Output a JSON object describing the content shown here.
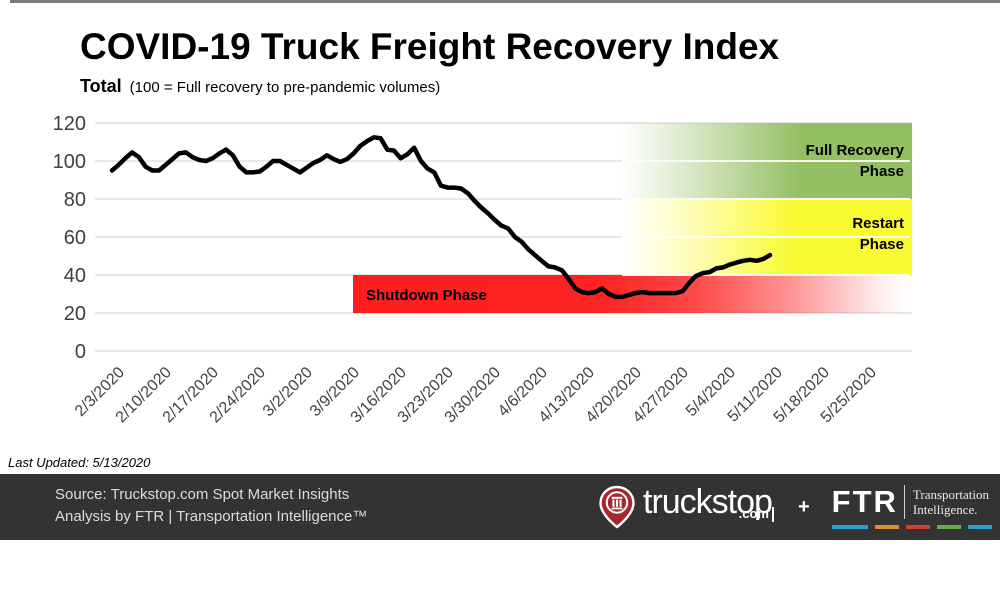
{
  "page": {
    "title": "COVID-19 Truck Freight Recovery Index",
    "subtitle_bold": "Total",
    "subtitle_note": "(100 = Full recovery to pre-pandemic volumes)",
    "last_updated": "Last Updated: 5/13/2020"
  },
  "chart_data": {
    "type": "line",
    "title": "COVID-19 Truck Freight Recovery Index",
    "series_name": "Total",
    "unit_note": "100 = Full recovery to pre-pandemic volumes",
    "frequency": "daily",
    "start_date": "2/3/2020",
    "end_date": "5/11/2020",
    "ylim": [
      0,
      120
    ],
    "y_ticks": [
      0,
      20,
      40,
      60,
      80,
      100,
      120
    ],
    "x_tick_labels": [
      "2/3/2020",
      "2/10/2020",
      "2/17/2020",
      "2/24/2020",
      "3/2/2020",
      "3/9/2020",
      "3/16/2020",
      "3/23/2020",
      "3/30/2020",
      "4/6/2020",
      "4/13/2020",
      "4/20/2020",
      "4/27/2020",
      "5/4/2020",
      "5/11/2020",
      "5/18/2020",
      "5/25/2020"
    ],
    "line_color": "#000000",
    "grid_color": "#d9d9d9",
    "values": [
      95,
      98,
      101.5,
      104.5,
      102,
      97,
      95,
      95,
      98,
      101,
      104,
      104.5,
      102,
      100.5,
      100,
      101.5,
      104,
      106,
      103,
      97,
      94,
      94,
      94.5,
      97,
      100,
      100,
      98,
      96,
      94,
      96.5,
      99,
      100.5,
      103,
      101,
      99.5,
      101,
      104,
      108,
      110.5,
      112.5,
      112,
      106,
      105.5,
      101.5,
      103.5,
      107,
      100,
      96,
      94,
      87,
      86,
      86,
      85.5,
      83,
      79,
      75.5,
      72.5,
      69,
      66,
      64.5,
      60,
      57.5,
      53.5,
      50.5,
      47.5,
      44.5,
      44,
      42.5,
      38,
      33,
      31,
      30.5,
      31,
      33,
      30,
      28.5,
      28.5,
      29.5,
      30.5,
      31,
      30.5,
      30.5,
      30.5,
      30.5,
      30.5,
      31.5,
      36,
      39.5,
      41,
      41.5,
      43.5,
      44,
      45.5,
      46.5,
      47.5,
      48,
      47.5,
      48.5,
      50.5
    ],
    "bands": [
      {
        "name": "full-recovery",
        "label": "Full Recovery Phase",
        "value_from": 80,
        "value_to": 120,
        "color": "#94bf62"
      },
      {
        "name": "restart",
        "label": "Restart Phase",
        "value_from": 40,
        "value_to": 80,
        "color": "#fafa33"
      },
      {
        "name": "shutdown",
        "label": "Shutdown Phase",
        "value_from": 20,
        "value_to": 40,
        "color": "#fd1d1d",
        "starts_at": "3/9/2020"
      }
    ]
  },
  "footer": {
    "source_line1": "Source: Truckstop.com Spot Market Insights",
    "source_line2": "Analysis by FTR | Transportation Intelligence™",
    "truckstop_logo": {
      "name": "truckstop",
      "tld": ".com",
      "pin_color": "#a8262e"
    },
    "plus": "+",
    "ftr_logo": {
      "name": "FTR",
      "tagline_line1": "Transportation",
      "tagline_line2": "Intelligence.",
      "bar_colors": [
        "#2e9ec9",
        "#de8d33",
        "#cb4136",
        "#67a94b",
        "#2e9ec9"
      ]
    }
  }
}
